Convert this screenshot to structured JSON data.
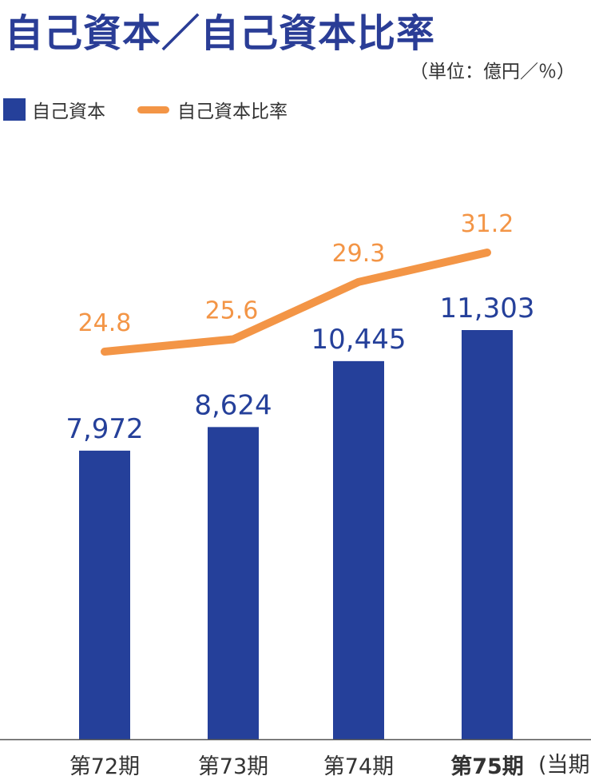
{
  "header": {
    "title": "自己資本／自己資本比率",
    "unit_note": "（単位：億円／％）"
  },
  "legend": [
    {
      "label": "自己資本",
      "kind": "bar"
    },
    {
      "label": "自己資本比率",
      "kind": "line"
    }
  ],
  "colors": {
    "bar": "#25409a",
    "line": "#f39546",
    "title": "#2a3d96",
    "axis": "#555555"
  },
  "chart_data": {
    "type": "bar",
    "categories": [
      "第72期",
      "第73期",
      "第74期",
      "第75期"
    ],
    "current_period_note": "(当期)",
    "highlight_index": 3,
    "series": [
      {
        "name": "自己資本",
        "type": "bar",
        "values": [
          7972,
          8624,
          10445,
          11303
        ],
        "labels": [
          "7,972",
          "8,624",
          "10,445",
          "11,303"
        ]
      },
      {
        "name": "自己資本比率",
        "type": "line",
        "values": [
          24.8,
          25.6,
          29.3,
          31.2
        ],
        "labels": [
          "24.8",
          "25.6",
          "29.3",
          "31.2"
        ]
      }
    ],
    "legend_position": "top-left"
  }
}
